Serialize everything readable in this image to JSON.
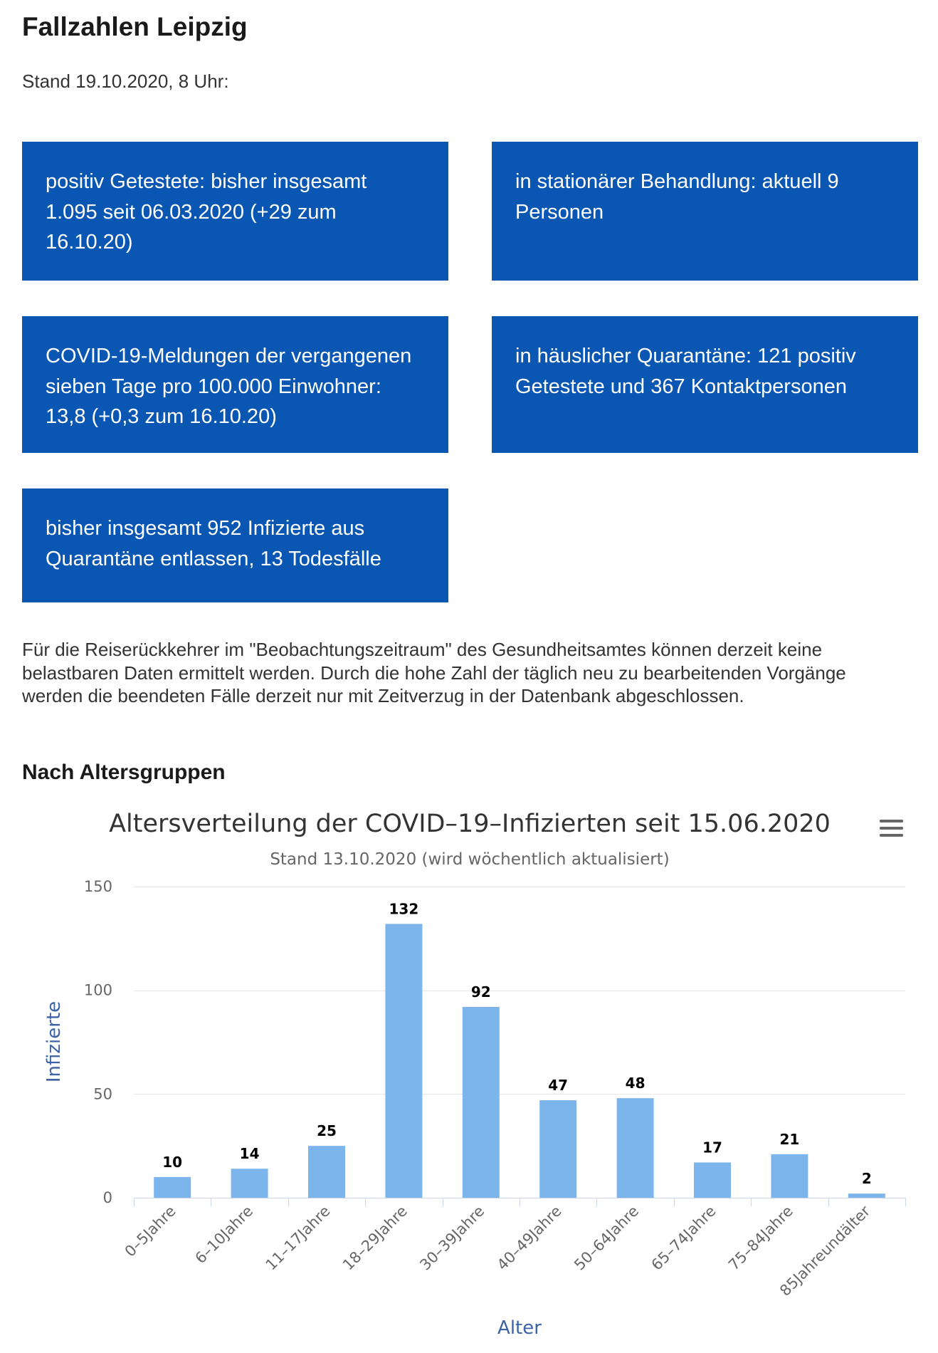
{
  "page": {
    "title": "Fallzahlen Leipzig",
    "status": "Stand 19.10.2020, 8 Uhr:",
    "note": "Für die Reiserückkehrer im \"Beobachtungszeitraum\" des Gesundheitsamtes können derzeit keine belastbaren Daten ermittelt werden. Durch die hohe Zahl der täglich neu zu bearbeitenden Vorgänge werden die beendeten Fälle derzeit nur mit Zeitverzug in der Datenbank abgeschlossen.",
    "section_heading": "Nach Altersgruppen"
  },
  "stats": [
    {
      "text": "positiv Getestete: bisher insgesamt 1.095 seit 06.03.2020 (+29 zum 16.10.20)"
    },
    {
      "text": "in stationärer Behandlung: aktuell 9 Personen"
    },
    {
      "text": "COVID-19-Meldungen der vergangenen sieben Tage pro 100.000 Einwohner: 13,8 (+0,3 zum 16.10.20)"
    },
    {
      "text": "in häuslicher Quarantäne: 121 positiv Getestete und 367 Kontaktpersonen"
    },
    {
      "text": "bisher insgesamt 952 Infizierte aus Quarantäne entlassen, 13 Todesfälle"
    }
  ],
  "colors": {
    "box_background": "#0a56b3",
    "axis_title": "#3b63a6"
  },
  "chart_menu": {
    "icon": "hamburger-icon"
  },
  "chart_data": {
    "type": "bar",
    "title": "Altersverteilung der COVID–19–Infizierten seit 15.06.2020",
    "subtitle": "Stand 13.10.2020 (wird wöchentlich aktualisiert)",
    "xlabel": "Alter",
    "ylabel": "Infizierte",
    "categories": [
      "0–5Jahre",
      "6–10Jahre",
      "11–17Jahre",
      "18–29Jahre",
      "30–39Jahre",
      "40–49Jahre",
      "50–64Jahre",
      "65–74Jahre",
      "75–84Jahre",
      "85Jahreundälter"
    ],
    "values": [
      10,
      14,
      25,
      132,
      92,
      47,
      48,
      17,
      21,
      2
    ],
    "ylim": [
      0,
      150
    ],
    "y_ticks": [
      0,
      50,
      100,
      150
    ],
    "grid": true,
    "data_labels": true,
    "color": "#7cb5ec"
  }
}
